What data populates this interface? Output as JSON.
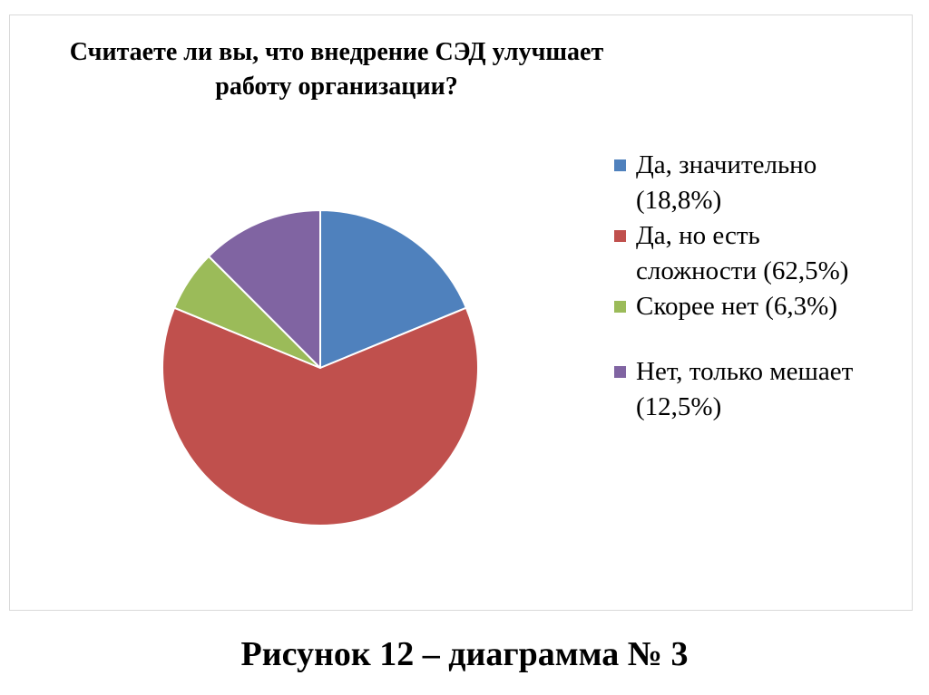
{
  "chart_data": {
    "type": "pie",
    "title_lines": [
      "Считаете ли вы, что внедрение СЭД улучшает",
      "работу организации?"
    ],
    "start_angle_deg": 0,
    "direction": "clockwise",
    "slices": [
      {
        "label": "Да, значительно (18,8%)",
        "label_lines": [
          "Да, значительно",
          "(18,8%)"
        ],
        "value": 18.8,
        "color": "#4F81BD"
      },
      {
        "label": "Да, но есть сложности (62,5%)",
        "label_lines": [
          "Да, но есть",
          "сложности (62,5%)"
        ],
        "value": 62.5,
        "color": "#C0504D"
      },
      {
        "label": "Скорее нет (6,3%)",
        "label_lines": [
          "Скорее нет (6,3%)"
        ],
        "value": 6.3,
        "color": "#9BBB59"
      },
      {
        "label": "Нет, только мешает (12,5%)",
        "label_lines": [
          "Нет, только мешает",
          "(12,5%)"
        ],
        "value": 12.5,
        "color": "#8064A2"
      }
    ],
    "legend_position": "right"
  },
  "caption": "Рисунок 12 – диаграмма № 3"
}
